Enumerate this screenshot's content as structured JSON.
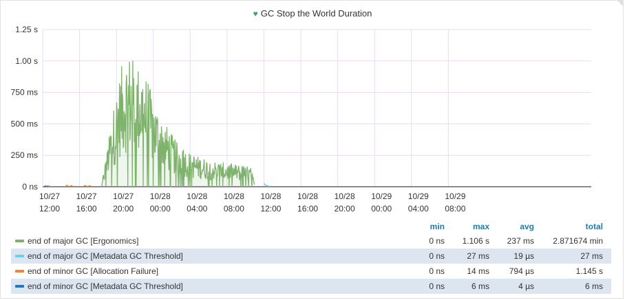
{
  "panel": {
    "title": "GC Stop the World Duration",
    "title_icon": "heart-icon"
  },
  "chart_data": {
    "type": "line",
    "title": "GC Stop the World Duration",
    "y_unit": "ms",
    "ylim": [
      0,
      1250
    ],
    "y_ticks": [
      "1.25 s",
      "1.00 s",
      "750 ms",
      "500 ms",
      "250 ms",
      "0 ns"
    ],
    "y_tick_values": [
      1250,
      1000,
      750,
      500,
      250,
      0
    ],
    "x_range_hours": [
      0,
      59.5
    ],
    "x_ticks": [
      {
        "date": "10/27",
        "time": "12:00",
        "h": 0
      },
      {
        "date": "10/27",
        "time": "16:00",
        "h": 4
      },
      {
        "date": "10/27",
        "time": "20:00",
        "h": 8
      },
      {
        "date": "10/28",
        "time": "00:00",
        "h": 12
      },
      {
        "date": "10/28",
        "time": "04:00",
        "h": 16
      },
      {
        "date": "10/28",
        "time": "08:00",
        "h": 20
      },
      {
        "date": "10/28",
        "time": "12:00",
        "h": 24
      },
      {
        "date": "10/28",
        "time": "16:00",
        "h": 28
      },
      {
        "date": "10/28",
        "time": "20:00",
        "h": 32
      },
      {
        "date": "10/29",
        "time": "00:00",
        "h": 36
      },
      {
        "date": "10/29",
        "time": "04:00",
        "h": 40
      },
      {
        "date": "10/29",
        "time": "08:00",
        "h": 44
      }
    ],
    "grid": true,
    "legend_placement": "bottom table",
    "series": [
      {
        "name": "end of major GC [Ergonomics]",
        "color": "#7eb26d",
        "fill": true,
        "envelope": [
          [
            6.4,
            0
          ],
          [
            6.6,
            120
          ],
          [
            7.0,
            300
          ],
          [
            7.5,
            550
          ],
          [
            8.0,
            750
          ],
          [
            8.5,
            950
          ],
          [
            9.0,
            1050
          ],
          [
            9.5,
            1060
          ],
          [
            10.0,
            1000
          ],
          [
            10.5,
            960
          ],
          [
            11.0,
            930
          ],
          [
            11.5,
            820
          ],
          [
            12.0,
            700
          ],
          [
            12.5,
            620
          ],
          [
            13.0,
            560
          ],
          [
            13.5,
            480
          ],
          [
            14.0,
            420
          ],
          [
            14.5,
            360
          ],
          [
            15.0,
            330
          ],
          [
            15.5,
            300
          ],
          [
            16.0,
            270
          ],
          [
            17.0,
            240
          ],
          [
            18.0,
            220
          ],
          [
            19.0,
            200
          ],
          [
            20.0,
            190
          ],
          [
            21.0,
            180
          ],
          [
            22.0,
            170
          ],
          [
            22.7,
            150
          ],
          [
            23.0,
            0
          ]
        ],
        "stats": {
          "min": "0 ns",
          "max": "1.106 s",
          "avg": "237 ms",
          "total": "2.871674 min"
        }
      },
      {
        "name": "end of major GC [Metadata GC Threshold]",
        "color": "#6ed0e0",
        "fill": false,
        "points": [
          [
            24.0,
            27
          ],
          [
            24.3,
            8
          ]
        ],
        "stats": {
          "min": "0 ns",
          "max": "27 ms",
          "avg": "19 µs",
          "total": "27 ms"
        }
      },
      {
        "name": "end of minor GC [Allocation Failure]",
        "color": "#ef843c",
        "fill": false,
        "points": [
          [
            0.5,
            8
          ],
          [
            2.5,
            14
          ],
          [
            3.0,
            10
          ],
          [
            4.5,
            12
          ],
          [
            5.0,
            9
          ]
        ],
        "stats": {
          "min": "0 ns",
          "max": "14 ms",
          "avg": "794 µs",
          "total": "1.145 s"
        }
      },
      {
        "name": "end of minor GC [Metadata GC Threshold]",
        "color": "#1f78c1",
        "fill": false,
        "points": [
          [
            0.2,
            6
          ]
        ],
        "stats": {
          "min": "0 ns",
          "max": "6 ms",
          "avg": "4 µs",
          "total": "6 ms"
        }
      }
    ]
  },
  "legend": {
    "headers": {
      "min": "min",
      "max": "max",
      "avg": "avg",
      "total": "total"
    },
    "rows": [
      {
        "label": "end of major GC [Ergonomics]",
        "color": "#7eb26d",
        "min": "0 ns",
        "max": "1.106 s",
        "avg": "237 ms",
        "total": "2.871674 min"
      },
      {
        "label": "end of major GC [Metadata GC Threshold]",
        "color": "#6ed0e0",
        "min": "0 ns",
        "max": "27 ms",
        "avg": "19 µs",
        "total": "27 ms"
      },
      {
        "label": "end of minor GC [Allocation Failure]",
        "color": "#ef843c",
        "min": "0 ns",
        "max": "14 ms",
        "avg": "794 µs",
        "total": "1.145 s"
      },
      {
        "label": "end of minor GC [Metadata GC Threshold]",
        "color": "#1f78c1",
        "min": "0 ns",
        "max": "6 ms",
        "avg": "4 µs",
        "total": "6 ms"
      }
    ]
  }
}
